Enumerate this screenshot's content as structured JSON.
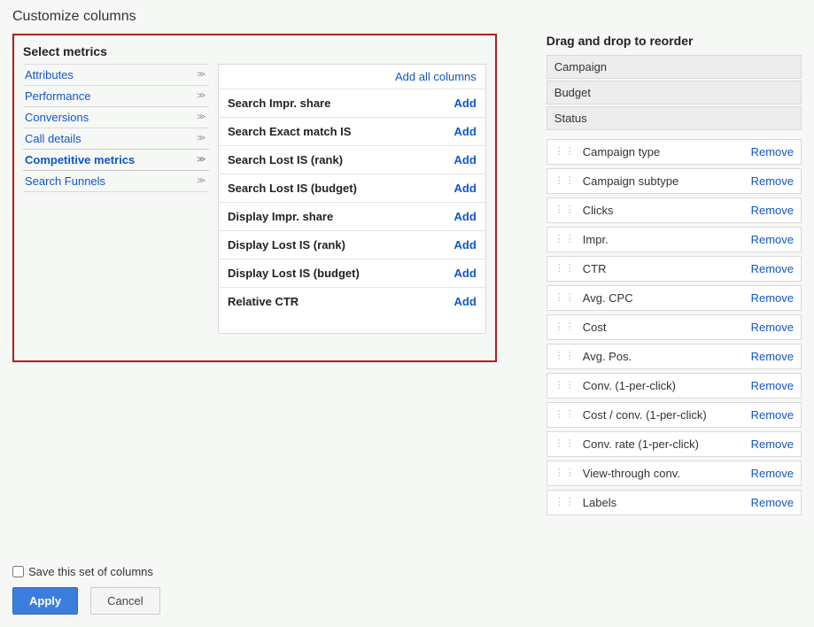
{
  "page_title": "Customize columns",
  "left": {
    "heading": "Select metrics",
    "categories": [
      {
        "label": "Attributes",
        "selected": false
      },
      {
        "label": "Performance",
        "selected": false
      },
      {
        "label": "Conversions",
        "selected": false
      },
      {
        "label": "Call details",
        "selected": false
      },
      {
        "label": "Competitive metrics",
        "selected": true
      },
      {
        "label": "Search Funnels",
        "selected": false
      }
    ],
    "add_all_label": "Add all columns",
    "add_label": "Add",
    "metrics": [
      "Search Impr. share",
      "Search Exact match IS",
      "Search Lost IS (rank)",
      "Search Lost IS (budget)",
      "Display Impr. share",
      "Display Lost IS (rank)",
      "Display Lost IS (budget)",
      "Relative CTR"
    ]
  },
  "right": {
    "heading": "Drag and drop to reorder",
    "locked": [
      "Campaign",
      "Budget",
      "Status"
    ],
    "remove_label": "Remove",
    "items": [
      "Campaign type",
      "Campaign subtype",
      "Clicks",
      "Impr.",
      "CTR",
      "Avg. CPC",
      "Cost",
      "Avg. Pos.",
      "Conv. (1-per-click)",
      "Cost / conv. (1-per-click)",
      "Conv. rate (1-per-click)",
      "View-through conv.",
      "Labels"
    ]
  },
  "footer": {
    "save_label": "Save this set of columns",
    "apply_label": "Apply",
    "cancel_label": "Cancel"
  },
  "colors": {
    "highlight_border": "#b01e1e",
    "link": "#1155cc",
    "bg": "#f6f8f6"
  }
}
